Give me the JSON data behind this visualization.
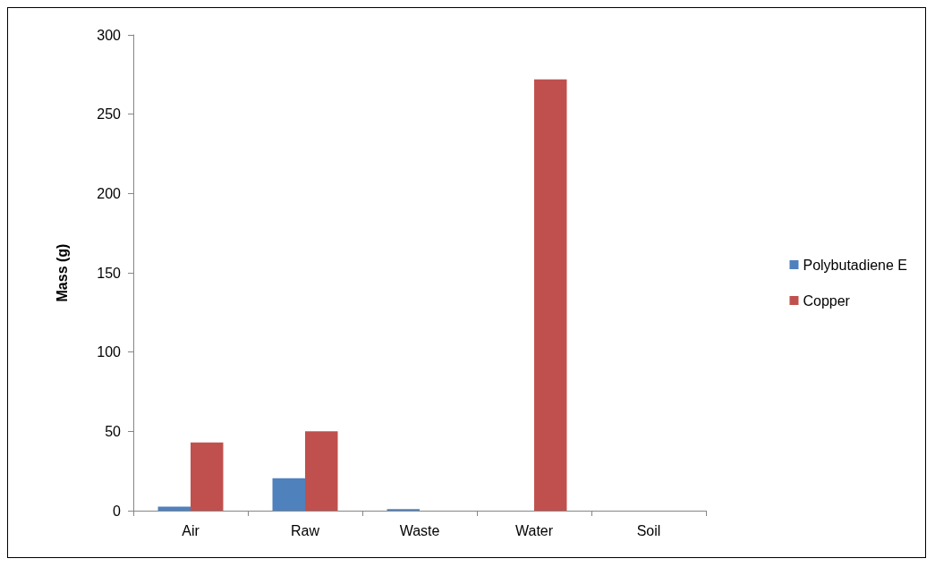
{
  "chart_data": {
    "type": "bar",
    "ylabel": "Mass (g)",
    "categories": [
      "Air",
      "Raw",
      "Waste",
      "Water",
      "Soil"
    ],
    "series": [
      {
        "name": "Polybutadiene E",
        "color": "#4f81bd",
        "values": [
          2.5,
          20.5,
          1,
          0,
          0
        ]
      },
      {
        "name": "Copper",
        "color": "#c0504d",
        "values": [
          43,
          50,
          0,
          272,
          0
        ]
      }
    ],
    "ylim": [
      0,
      300
    ],
    "yticks": [
      0,
      50,
      100,
      150,
      200,
      250,
      300
    ],
    "grid": false,
    "legend": "right"
  }
}
